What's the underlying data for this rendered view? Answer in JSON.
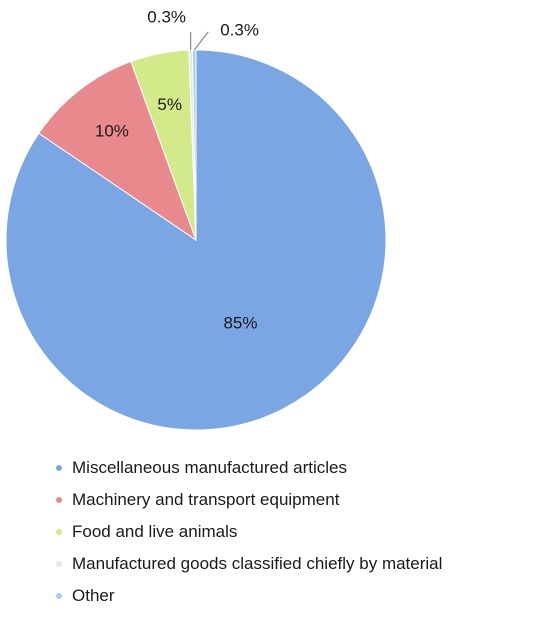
{
  "chart_data": {
    "type": "pie",
    "title": "",
    "series": [
      {
        "name": "Miscellaneous manufactured articles",
        "value": 85,
        "label": "85%",
        "color": "#7aa7e3"
      },
      {
        "name": "Machinery and transport equipment",
        "value": 10,
        "label": "10%",
        "color": "#e8898d"
      },
      {
        "name": "Food and live animals",
        "value": 5,
        "label": "5%",
        "color": "#d3ea8a"
      },
      {
        "name": "Manufactured goods classified chiefly by material",
        "value": 0.3,
        "label": "0.3%",
        "color": "#e8e8e8"
      },
      {
        "name": "Other",
        "value": 0.3,
        "label": "0.3%",
        "color": "#a9cbee"
      }
    ],
    "legend_position": "bottom-left"
  }
}
